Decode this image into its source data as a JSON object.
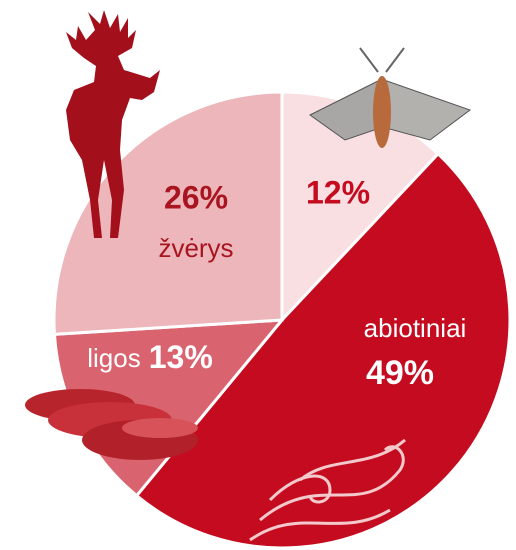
{
  "chart_data": {
    "type": "pie",
    "categories": [
      null,
      "abiotiniai",
      "ligos",
      "žvėrys"
    ],
    "values": [
      12,
      49,
      13,
      26
    ],
    "value_labels": [
      "12%",
      "49%",
      "13%",
      "26%"
    ],
    "colors": [
      "#f9dfe1",
      "#c50b1f",
      "#d9646f",
      "#ecb6ba"
    ]
  }
}
